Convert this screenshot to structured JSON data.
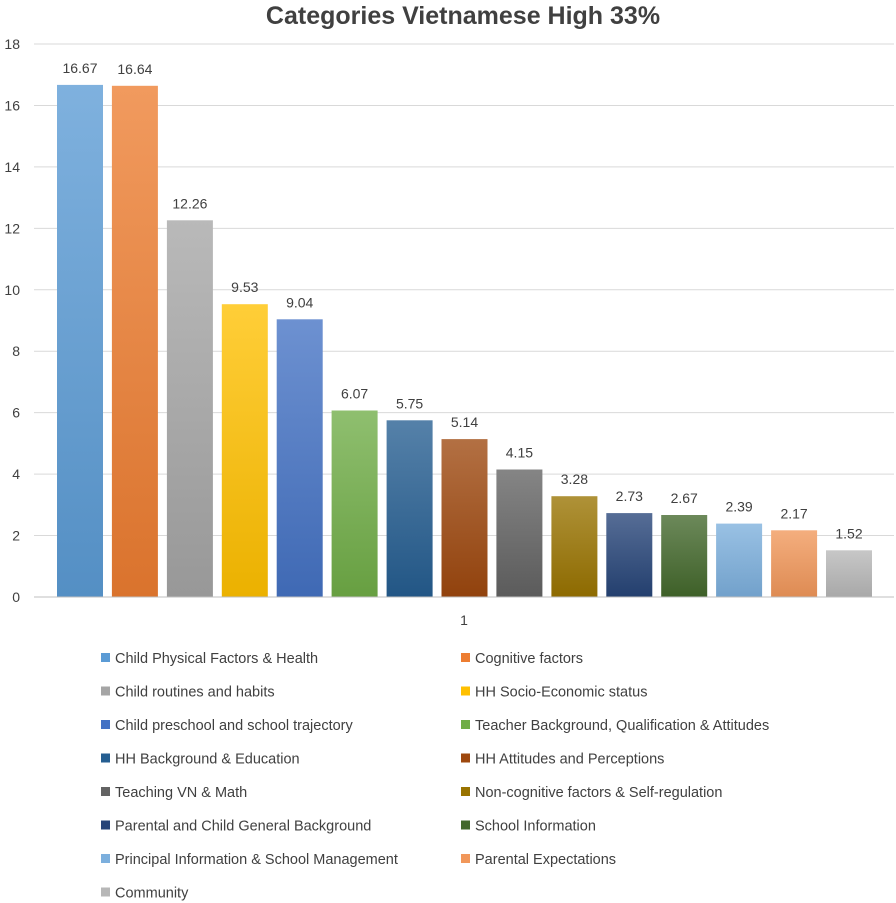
{
  "chart_data": {
    "type": "bar",
    "title": "Categories Vietnamese High 33%",
    "xlabel": "",
    "ylabel": "",
    "categories": [
      "1"
    ],
    "ylim": [
      0,
      18
    ],
    "yticks": [
      0,
      2,
      4,
      6,
      8,
      10,
      12,
      14,
      16,
      18
    ],
    "grid": true,
    "legend_position": "bottom",
    "series": [
      {
        "name": "Child Physical Factors & Health",
        "values": [
          16.67
        ],
        "label": "16.67",
        "color": "#5b9bd5"
      },
      {
        "name": "Cognitive factors",
        "values": [
          16.64
        ],
        "label": "16.64",
        "color": "#ed7d31"
      },
      {
        "name": "Child routines and habits",
        "values": [
          12.26
        ],
        "label": "12.26",
        "color": "#a5a5a5"
      },
      {
        "name": "HH Socio-Economic status",
        "values": [
          9.53
        ],
        "label": "9.53",
        "color": "#ffc000"
      },
      {
        "name": "Child preschool and school trajectory",
        "values": [
          9.04
        ],
        "label": "9.04",
        "color": "#4472c4"
      },
      {
        "name": "Teacher Background, Qualification & Attitudes",
        "values": [
          6.07
        ],
        "label": "6.07",
        "color": "#70ad47"
      },
      {
        "name": "HH Background & Education",
        "values": [
          5.75
        ],
        "label": "5.75",
        "color": "#255e91"
      },
      {
        "name": "HH Attitudes and Perceptions",
        "values": [
          5.14
        ],
        "label": "5.14",
        "color": "#9e480e"
      },
      {
        "name": "Teaching VN & Math",
        "values": [
          4.15
        ],
        "label": "4.15",
        "color": "#636363"
      },
      {
        "name": "Non-cognitive factors & Self-regulation",
        "values": [
          3.28
        ],
        "label": "3.28",
        "color": "#997300"
      },
      {
        "name": "Parental and Child General Background",
        "values": [
          2.73
        ],
        "label": "2.73",
        "color": "#264478"
      },
      {
        "name": "School Information",
        "values": [
          2.67
        ],
        "label": "2.67",
        "color": "#43682b"
      },
      {
        "name": "Principal Information & School Management",
        "values": [
          2.39
        ],
        "label": "2.39",
        "color": "#7cafdd"
      },
      {
        "name": "Parental Expectations",
        "values": [
          2.17
        ],
        "label": "2.17",
        "color": "#f1975a"
      },
      {
        "name": "Community",
        "values": [
          1.52
        ],
        "label": "1.52",
        "color": "#b7b7b7"
      }
    ]
  }
}
